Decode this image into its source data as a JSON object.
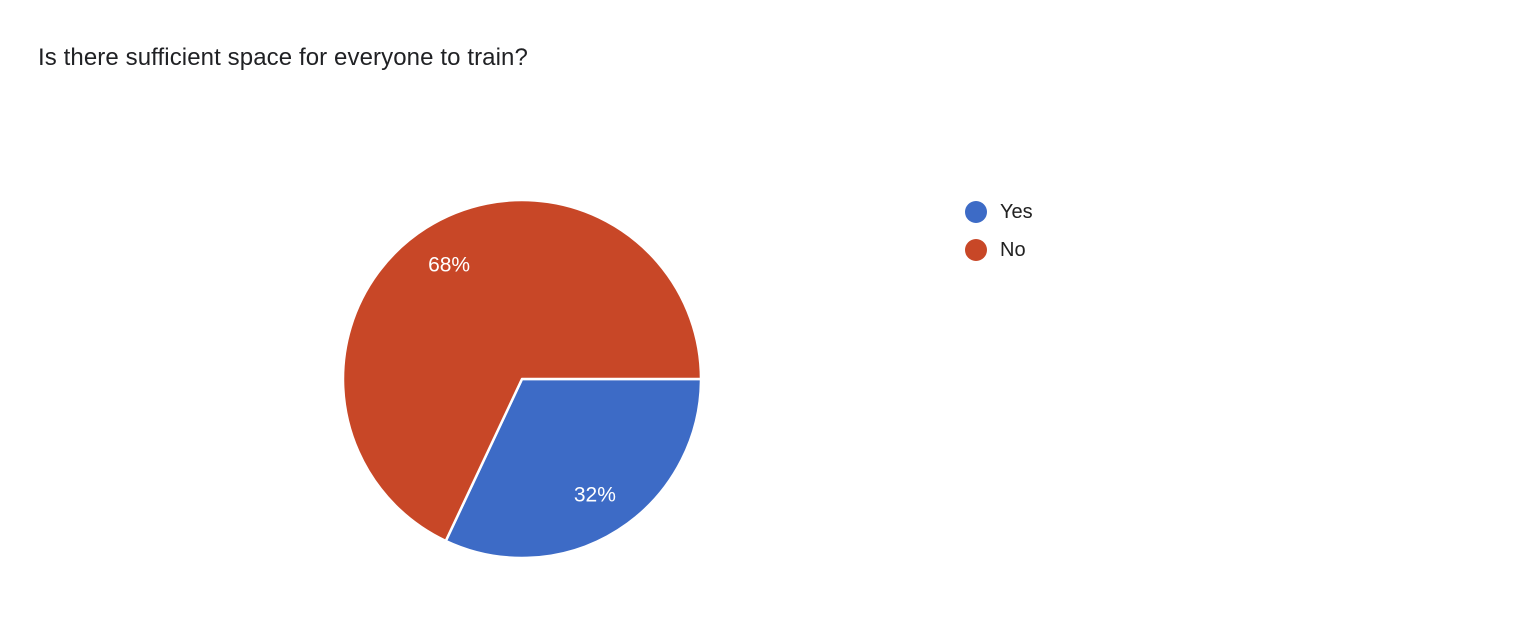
{
  "question": {
    "title": "Is there sufficient space for everyone to train?"
  },
  "chart_data": {
    "type": "pie",
    "title": "Is there sufficient space for everyone to train?",
    "slices": [
      {
        "label": "Yes",
        "value": 32,
        "display_value": "32%",
        "color": "#3D6BC6"
      },
      {
        "label": "No",
        "value": 68,
        "display_value": "68%",
        "color": "#C84727"
      }
    ],
    "value_labels_shown": [
      "68%",
      "32%"
    ],
    "value_label_color": "#ffffff",
    "legend_position": "right",
    "legend_items": [
      "Yes",
      "No"
    ],
    "start_angle_deg_from_east": 0,
    "direction": "clockwise",
    "separator_color": "#ffffff"
  },
  "colors": {
    "background": "#ffffff",
    "title_text": "#202124",
    "legend_text": "#212121"
  }
}
